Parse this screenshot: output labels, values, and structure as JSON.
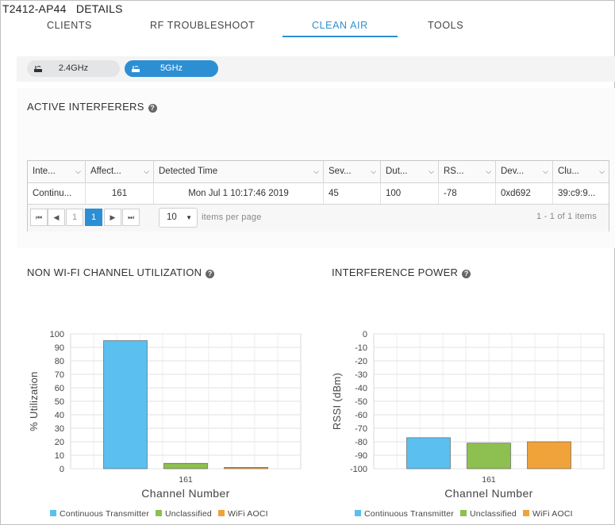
{
  "header": {
    "ap_name": "T2412-AP44",
    "details_label": "DETAILS"
  },
  "tabs": [
    {
      "label": "CLIENTS",
      "active": false
    },
    {
      "label": "RF TROUBLESHOOT",
      "active": false
    },
    {
      "label": "CLEAN AIR",
      "active": true
    },
    {
      "label": "TOOLS",
      "active": false
    }
  ],
  "band_toggle": {
    "options": [
      {
        "label": "2.4GHz",
        "icon": "access-point-icon",
        "selected": false
      },
      {
        "label": "5GHz",
        "icon": "access-point-icon",
        "selected": true
      }
    ]
  },
  "active_interferers": {
    "title": "ACTIVE INTERFERERS",
    "columns": [
      "Inte...",
      "Affect...",
      "Detected Time",
      "Sev...",
      "Dut...",
      "RS...",
      "Dev...",
      "Clu..."
    ],
    "rows": [
      [
        "Continu...",
        "161",
        "Mon Jul 1 10:17:46 2019",
        "45",
        "100",
        "-78",
        "0xd692",
        "39:c9:9..."
      ]
    ],
    "pager": {
      "first_icon": "first-page-icon",
      "prev_icon": "prev-page-icon",
      "pages": [
        "1",
        "1"
      ],
      "next_icon": "next-page-icon",
      "last_icon": "last-page-icon",
      "per_page_value": "10",
      "per_page_label": "items per page",
      "range_text": "1 - 1 of 1 items"
    }
  },
  "non_wifi_section": {
    "title": "NON WI-FI CHANNEL UTILIZATION"
  },
  "interference_power_section": {
    "title": "INTERFERENCE POWER"
  },
  "legend": {
    "items": [
      {
        "label": "Continuous Transmitter",
        "color": "#5bc0ef"
      },
      {
        "label": "Unclassified",
        "color": "#8dc050"
      },
      {
        "label": "WiFi AOCI",
        "color": "#f0a23b"
      }
    ]
  },
  "chart_data": [
    {
      "type": "bar",
      "title": "NON WI-FI CHANNEL UTILIZATION",
      "categories": [
        "161"
      ],
      "series": [
        {
          "name": "Continuous Transmitter",
          "values": [
            95
          ],
          "color": "#5bc0ef"
        },
        {
          "name": "Unclassified",
          "values": [
            4
          ],
          "color": "#8dc050"
        },
        {
          "name": "WiFi AOCI",
          "values": [
            1
          ],
          "color": "#f0a23b"
        }
      ],
      "xlabel": "Channel Number",
      "ylabel": "% Utilization",
      "ylim": [
        0,
        100
      ],
      "yticks": [
        0,
        10,
        20,
        30,
        40,
        50,
        60,
        70,
        80,
        90,
        100
      ],
      "grid": true,
      "legend": "bottom"
    },
    {
      "type": "bar",
      "title": "INTERFERENCE POWER",
      "categories": [
        "161"
      ],
      "series": [
        {
          "name": "Continuous Transmitter",
          "values": [
            -77
          ],
          "color": "#5bc0ef"
        },
        {
          "name": "Unclassified",
          "values": [
            -81
          ],
          "color": "#8dc050"
        },
        {
          "name": "WiFi AOCI",
          "values": [
            -80
          ],
          "color": "#f0a23b"
        }
      ],
      "xlabel": "Channel Number",
      "ylabel": "RSSI (dBm)",
      "ylim": [
        -100,
        0
      ],
      "yticks": [
        0,
        -10,
        -20,
        -30,
        -40,
        -50,
        -60,
        -70,
        -80,
        -90,
        -100
      ],
      "grid": true,
      "legend": "bottom"
    }
  ]
}
